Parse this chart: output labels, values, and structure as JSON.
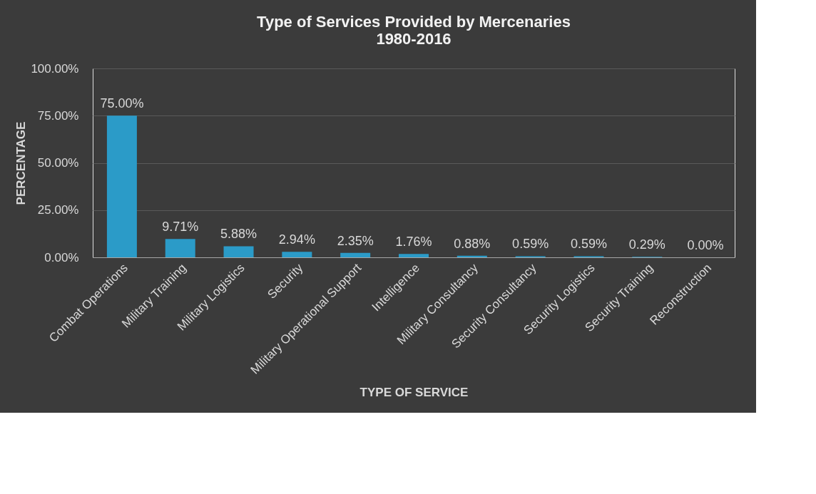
{
  "chart_data": {
    "type": "bar",
    "title": "Type of Services Provided by Mercenaries\n1980-2016",
    "xlabel": "TYPE OF SERVICE",
    "ylabel": "PERCENTAGE",
    "categories": [
      "Combat Operations",
      "Military Training",
      "Military Logistics",
      "Security",
      "Military Operational Support",
      "Intelligence",
      "Military Consultancy",
      "Security Consultancy",
      "Security Logistics",
      "Security Training",
      "Reconstruction"
    ],
    "values": [
      75.0,
      9.71,
      5.88,
      2.94,
      2.35,
      1.76,
      0.88,
      0.59,
      0.59,
      0.29,
      0.0
    ],
    "value_labels": [
      "75.00%",
      "9.71%",
      "5.88%",
      "2.94%",
      "2.35%",
      "1.76%",
      "0.88%",
      "0.59%",
      "0.59%",
      "0.29%",
      "0.00%"
    ],
    "color": "#2b9bc8",
    "ylim": [
      0,
      100
    ],
    "yticks": [
      {
        "value": 0,
        "label": "0.00%"
      },
      {
        "value": 25,
        "label": "25.00%"
      },
      {
        "value": 50,
        "label": "50.00%"
      },
      {
        "value": 75,
        "label": "75.00%"
      },
      {
        "value": 100,
        "label": "100.00%"
      }
    ],
    "grid": "y"
  }
}
